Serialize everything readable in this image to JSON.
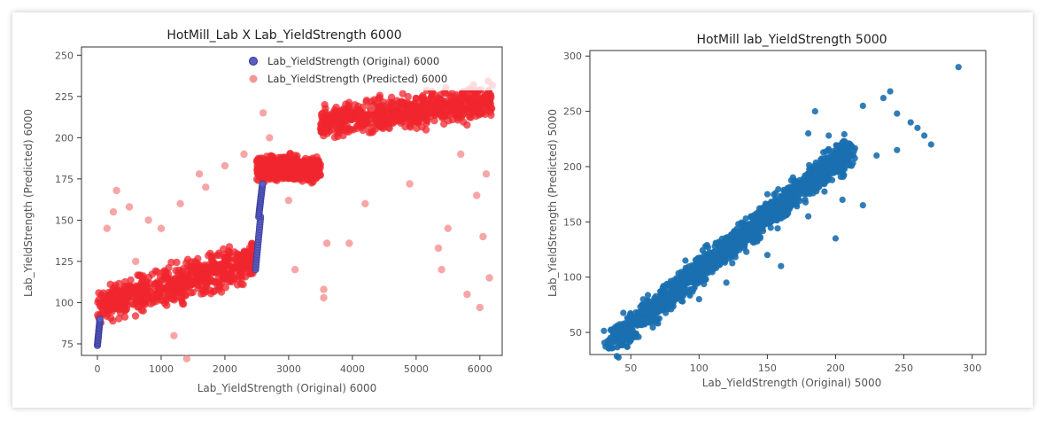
{
  "chart_data": [
    {
      "type": "scatter",
      "title": "HotMill_Lab X Lab_YieldStrength 6000",
      "xlabel": "Lab_YieldStrength (Original)  6000",
      "ylabel": "Lab_YieldStrength (Predicted) 6000",
      "xlim": [
        -250,
        6350
      ],
      "ylim": [
        68,
        255
      ],
      "xticks": [
        0,
        1000,
        2000,
        3000,
        4000,
        5000,
        6000
      ],
      "yticks": [
        75,
        100,
        125,
        150,
        175,
        200,
        225,
        250
      ],
      "grid": false,
      "legend_position": "top-right",
      "series": [
        {
          "name": "Lab_YieldStrength (Original)  6000",
          "color": "#3b3fa0",
          "segments": [
            {
              "x": [
                0,
                40
              ],
              "y": [
                74,
                90
              ]
            },
            {
              "x": [
                2480,
                2560
              ],
              "y": [
                120,
                152
              ]
            },
            {
              "x": [
                2530,
                2590
              ],
              "y": [
                152,
                172
              ]
            }
          ]
        },
        {
          "name": "Lab_YieldStrength (Predicted) 6000",
          "color": "#f0262d",
          "clusters": [
            {
              "x_range": [
                0,
                2500
              ],
              "y_start": [
                85,
                110
              ],
              "y_end": [
                112,
                140
              ]
            },
            {
              "x_range": [
                2500,
                3500
              ],
              "y_start": [
                172,
                190
              ],
              "y_end": [
                172,
                190
              ]
            },
            {
              "x_range": [
                3500,
                6200
              ],
              "y_start": [
                198,
                220
              ],
              "y_end": [
                210,
                235
              ]
            }
          ],
          "outliers": [
            [
              1400,
              66
            ],
            [
              1200,
              80
            ],
            [
              3550,
              103
            ],
            [
              3950,
              136
            ],
            [
              3600,
              136
            ],
            [
              3550,
              108
            ],
            [
              5350,
              133
            ],
            [
              5800,
              105
            ],
            [
              6150,
              115
            ],
            [
              6050,
              140
            ],
            [
              5500,
              145
            ],
            [
              5950,
              165
            ],
            [
              6100,
              178
            ],
            [
              5700,
              190
            ],
            [
              4200,
              160
            ],
            [
              4900,
              172
            ],
            [
              300,
              168
            ],
            [
              500,
              158
            ],
            [
              800,
              150
            ],
            [
              1300,
              160
            ],
            [
              1700,
              170
            ],
            [
              2000,
              183
            ],
            [
              2300,
              190
            ],
            [
              1000,
              145
            ],
            [
              600,
              125
            ],
            [
              150,
              145
            ],
            [
              250,
              155
            ],
            [
              6000,
              97
            ],
            [
              5400,
              120
            ],
            [
              1600,
              178
            ],
            [
              2600,
              215
            ],
            [
              3100,
              120
            ],
            [
              2700,
              200
            ],
            [
              4300,
              218
            ],
            [
              3000,
              162
            ]
          ]
        }
      ]
    },
    {
      "type": "scatter",
      "title": "HotMill lab_YieldStrength  5000",
      "xlabel": "Lab_YieldStrength  (Original) 5000",
      "ylabel": "Lab_YieldStrength (Predicted) 5000",
      "xlim": [
        20,
        310
      ],
      "ylim": [
        30,
        305
      ],
      "xticks": [
        50,
        100,
        150,
        200,
        250,
        300
      ],
      "xtick_labels": [
        "50",
        "100",
        "150",
        "200",
        "250",
        "300"
      ],
      "yticks": [
        50,
        100,
        150,
        200,
        250,
        300
      ],
      "ytick_labels": [
        "50",
        "100",
        "150",
        "200",
        "250",
        "300"
      ],
      "grid": false,
      "series": [
        {
          "color": "#1a6fb0",
          "trend": {
            "x": [
              35,
              210
            ],
            "y": [
              40,
              215
            ],
            "spread": 18
          },
          "outliers": [
            [
              290,
              290
            ],
            [
              235,
              262
            ],
            [
              240,
              268
            ],
            [
              220,
              255
            ],
            [
              245,
              248
            ],
            [
              260,
              235
            ],
            [
              245,
              215
            ],
            [
              270,
              220
            ],
            [
              195,
              228
            ],
            [
              180,
              230
            ],
            [
              205,
              170
            ],
            [
              180,
              155
            ],
            [
              220,
              165
            ],
            [
              150,
              120
            ],
            [
              160,
              110
            ],
            [
              120,
              95
            ],
            [
              105,
              98
            ],
            [
              100,
              80
            ],
            [
              200,
              135
            ],
            [
              230,
              210
            ],
            [
              255,
              240
            ],
            [
              265,
              228
            ],
            [
              130,
              140
            ],
            [
              90,
              115
            ],
            [
              185,
              250
            ],
            [
              150,
              175
            ]
          ]
        }
      ]
    }
  ]
}
